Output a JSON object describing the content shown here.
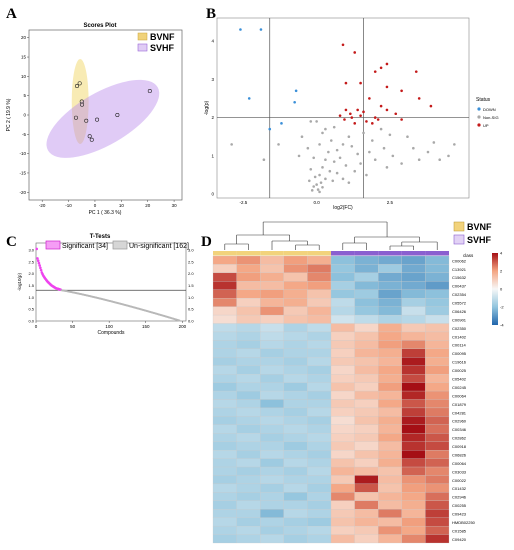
{
  "panels": {
    "A": {
      "letter": "A",
      "title": "Scores Plot",
      "xlabel": "PC 1 ( 36.3 %)",
      "ylabel": "PC 2 ( 19.9 %)",
      "legend": [
        {
          "name": "BVNF",
          "color": "#f0d27a"
        },
        {
          "name": "SVHF",
          "color": "#9a66d8"
        }
      ],
      "x_ticks": [
        "-20",
        "-10",
        "0",
        "10",
        "20",
        "30"
      ],
      "y_ticks": [
        "-20",
        "-15",
        "-10",
        "-5",
        "0",
        "5",
        "10",
        "15",
        "20"
      ]
    },
    "B": {
      "letter": "B",
      "xlabel": "log2(FC)",
      "ylabel": "-log(p)",
      "x_ticks": [
        "-2.5",
        "0.0",
        "2.5"
      ],
      "y_ticks": [
        "0",
        "1",
        "2",
        "3",
        "4"
      ],
      "legend_title": "Status",
      "legend": [
        {
          "name": "DOWN",
          "color": "#3a8fd8"
        },
        {
          "name": "Non-SIG",
          "color": "#a9a9a9"
        },
        {
          "name": "UP",
          "color": "#c41a1a"
        }
      ]
    },
    "C": {
      "letter": "C",
      "title": "T-Tests",
      "xlabel": "Compounds",
      "ylabel": "-log10(p)",
      "legend": [
        {
          "name": "Significant [34]",
          "color": "#ee44ee"
        },
        {
          "name": "Un-significant [162]",
          "color": "#b8b8b8"
        }
      ],
      "x_ticks": [
        "0",
        "50",
        "100",
        "150",
        "200"
      ],
      "y_ticks": [
        "0.0",
        "0.5",
        "1.0",
        "1.5",
        "2.0",
        "2.5",
        "3.0"
      ]
    },
    "D": {
      "letter": "D",
      "legend": [
        {
          "name": "BVNF",
          "color": "#f2d37c"
        },
        {
          "name": "SVHF",
          "color": "#8a5fd0"
        }
      ],
      "class_label": "class",
      "scale_ticks": [
        "4",
        "2",
        "0",
        "-2",
        "-4"
      ],
      "row_labels": [
        "C00062",
        "C13921",
        "C15632",
        "C00437",
        "C02354",
        "C05572",
        "C06426",
        "C00901",
        "C02350",
        "C01402",
        "C00114",
        "C00095",
        "C19616",
        "C00025",
        "C05402",
        "C00245",
        "C00064",
        "C01879",
        "C04281",
        "C02960",
        "C00346",
        "C02862",
        "C00918",
        "C06826",
        "C00064",
        "C03033",
        "C00022",
        "C01432",
        "C02946",
        "C00255",
        "C09423",
        "HMDB02250",
        "C01585",
        "C09420"
      ]
    }
  },
  "chart_data": [
    {
      "type": "scatter",
      "title": "Scores Plot",
      "xlabel": "PC 1 ( 36.3 %)",
      "ylabel": "PC 2 ( 19.9 %)",
      "xlim": [
        -25,
        33
      ],
      "ylim": [
        -22,
        22
      ],
      "series": [
        {
          "name": "BVNF",
          "color": "#f0d27a",
          "points": [
            [
              -6.8,
              7.5
            ],
            [
              -5.8,
              8.2
            ],
            [
              -5.0,
              3.5
            ],
            [
              -4.9,
              2.7
            ],
            [
              -7.2,
              -0.7
            ],
            [
              -3.3,
              -1.5
            ]
          ],
          "ellipse": {
            "cx": -5.6,
            "cy": 3.5,
            "rx": 3.2,
            "ry": 11,
            "angle": 0
          }
        },
        {
          "name": "SVHF",
          "color": "#9a66d8",
          "points": [
            [
              -2.0,
              -5.5
            ],
            [
              -1.2,
              -6.4
            ],
            [
              0.8,
              -1.2
            ],
            [
              8.5,
              0.0
            ],
            [
              20.8,
              6.2
            ]
          ],
          "ellipse": {
            "cx": 3.0,
            "cy": -1.0,
            "rx": 24,
            "ry": 6.8,
            "angle": 30
          }
        }
      ]
    },
    {
      "type": "scatter",
      "xlabel": "log2(FC)",
      "ylabel": "-log(p)",
      "xlim": [
        -3.4,
        5.2
      ],
      "ylim": [
        -0.1,
        4.6
      ],
      "vlines": [
        -1.6,
        1.6
      ],
      "hline": 2.0,
      "series": [
        {
          "name": "DOWN",
          "color": "#3a8fd8",
          "points": [
            [
              -2.6,
              4.3
            ],
            [
              -1.9,
              4.3
            ],
            [
              -2.3,
              2.5
            ],
            [
              -0.7,
              2.7
            ],
            [
              -0.75,
              2.4
            ],
            [
              -1.2,
              1.85
            ],
            [
              -1.6,
              1.7
            ]
          ]
        },
        {
          "name": "UP",
          "color": "#c41a1a",
          "points": [
            [
              0.9,
              3.9
            ],
            [
              1.3,
              3.7
            ],
            [
              1.0,
              2.9
            ],
            [
              2.2,
              3.3
            ],
            [
              2.0,
              3.2
            ],
            [
              2.4,
              3.4
            ],
            [
              1.5,
              2.9
            ],
            [
              3.5,
              2.5
            ],
            [
              2.4,
              2.8
            ],
            [
              1.8,
              2.5
            ],
            [
              2.2,
              2.3
            ],
            [
              3.4,
              3.2
            ],
            [
              3.9,
              2.3
            ],
            [
              2.9,
              2.7
            ],
            [
              2.0,
              2.0
            ],
            [
              2.7,
              2.1
            ],
            [
              2.4,
              2.2
            ],
            [
              1.4,
              2.2
            ],
            [
              1.6,
              2.15
            ],
            [
              1.0,
              2.2
            ],
            [
              1.2,
              2.0
            ],
            [
              0.8,
              2.05
            ],
            [
              2.9,
              1.95
            ],
            [
              1.7,
              1.9
            ],
            [
              2.1,
              1.95
            ],
            [
              1.3,
              1.85
            ],
            [
              1.9,
              1.85
            ],
            [
              1.5,
              2.05
            ],
            [
              0.95,
              1.95
            ],
            [
              1.15,
              2.1
            ]
          ]
        },
        {
          "name": "Non-SIG",
          "color": "#a9a9a9",
          "points": [
            [
              -2.9,
              1.3
            ],
            [
              -1.3,
              1.3
            ],
            [
              -0.2,
              1.9
            ],
            [
              0.0,
              1.9
            ],
            [
              -1.8,
              0.9
            ],
            [
              -0.5,
              1.5
            ],
            [
              0.3,
              1.7
            ],
            [
              0.6,
              1.75
            ],
            [
              0.2,
              1.6
            ],
            [
              0.5,
              1.4
            ],
            [
              0.1,
              1.3
            ],
            [
              -0.3,
              1.2
            ],
            [
              0.7,
              1.15
            ],
            [
              0.4,
              1.1
            ],
            [
              0.9,
              1.3
            ],
            [
              1.1,
              1.5
            ],
            [
              1.2,
              1.25
            ],
            [
              1.4,
              1.05
            ],
            [
              -0.6,
              1.0
            ],
            [
              -0.1,
              0.95
            ],
            [
              0.3,
              0.9
            ],
            [
              0.6,
              0.85
            ],
            [
              0.8,
              0.95
            ],
            [
              1.0,
              0.75
            ],
            [
              0.2,
              0.7
            ],
            [
              -0.2,
              0.65
            ],
            [
              0.45,
              0.6
            ],
            [
              0.7,
              0.55
            ],
            [
              0.1,
              0.5
            ],
            [
              -0.05,
              0.45
            ],
            [
              0.3,
              0.4
            ],
            [
              0.55,
              0.35
            ],
            [
              -0.25,
              0.35
            ],
            [
              0.15,
              0.3
            ],
            [
              0.0,
              0.25
            ],
            [
              -0.1,
              0.2
            ],
            [
              0.2,
              0.18
            ],
            [
              0.05,
              0.12
            ],
            [
              -0.15,
              0.1
            ],
            [
              0.1,
              0.06
            ],
            [
              1.6,
              1.6
            ],
            [
              1.9,
              1.4
            ],
            [
              2.3,
              1.2
            ],
            [
              2.6,
              1.0
            ],
            [
              2.9,
              0.8
            ],
            [
              3.1,
              1.5
            ],
            [
              3.3,
              1.2
            ],
            [
              3.5,
              0.9
            ],
            [
              3.8,
              1.1
            ],
            [
              4.0,
              1.35
            ],
            [
              4.2,
              0.9
            ],
            [
              4.5,
              1.0
            ],
            [
              4.7,
              1.3
            ],
            [
              2.2,
              1.7
            ],
            [
              2.5,
              1.55
            ],
            [
              1.8,
              1.1
            ],
            [
              2.0,
              0.9
            ],
            [
              2.4,
              0.7
            ],
            [
              1.5,
              0.8
            ],
            [
              1.3,
              0.6
            ],
            [
              1.7,
              0.5
            ],
            [
              0.9,
              0.4
            ],
            [
              1.1,
              0.3
            ]
          ]
        }
      ]
    },
    {
      "type": "scatter",
      "title": "T-Tests",
      "xlabel": "Compounds",
      "ylabel": "-log10(p)",
      "xlim": [
        0,
        205
      ],
      "ylim": [
        0,
        3.3
      ],
      "hline": 1.3,
      "series": [
        {
          "name": "Significant [34]",
          "color": "#ee44ee",
          "values": [
            3.05,
            2.65,
            2.55,
            2.45,
            2.35,
            2.25,
            2.15,
            2.05,
            1.98,
            1.92,
            1.87,
            1.82,
            1.78,
            1.74,
            1.7,
            1.66,
            1.63,
            1.6,
            1.57,
            1.54,
            1.51,
            1.49,
            1.47,
            1.45,
            1.43,
            1.41,
            1.39,
            1.38,
            1.37,
            1.36,
            1.35,
            1.34,
            1.33,
            1.32
          ]
        },
        {
          "name": "Un-significant [162]",
          "color": "#b8b8b8",
          "start": 1.3,
          "end": 0.02,
          "count": 162
        }
      ]
    },
    {
      "type": "heatmap",
      "legend": [
        "BVNF",
        "SVHF"
      ],
      "class_label": "class",
      "columns": 10,
      "column_groups": [
        "BVNF",
        "BVNF",
        "BVNF",
        "BVNF",
        "BVNF",
        "SVHF",
        "SVHF",
        "SVHF",
        "SVHF",
        "SVHF"
      ],
      "scale_range": [
        -4,
        4
      ],
      "rows": [
        [
          1.2,
          1.4,
          0.9,
          1.3,
          1.1,
          -1.3,
          -1.5,
          -1.6,
          -1.7,
          -1.4
        ],
        [
          0.6,
          1.2,
          0.8,
          1.4,
          1.6,
          -1.2,
          -1.5,
          -1.1,
          -1.6,
          -1.4
        ],
        [
          2.0,
          1.3,
          1.1,
          0.8,
          1.5,
          -1.3,
          -1.0,
          -1.6,
          -1.7,
          -1.5
        ],
        [
          2.2,
          0.9,
          0.9,
          1.2,
          1.3,
          -1.0,
          -1.4,
          -1.5,
          -1.6,
          -1.8
        ],
        [
          1.8,
          1.2,
          1.3,
          1.1,
          0.8,
          -1.2,
          -1.1,
          -1.7,
          -1.4,
          -1.3
        ],
        [
          1.5,
          0.6,
          1.0,
          1.1,
          0.7,
          -0.7,
          -1.3,
          -1.5,
          -1.0,
          -1.2
        ],
        [
          0.5,
          0.8,
          1.4,
          0.7,
          1.0,
          -0.8,
          -1.2,
          -1.4,
          -0.6,
          -1.1
        ],
        [
          0.4,
          0.7,
          0.6,
          0.8,
          0.9,
          -0.5,
          -0.7,
          -0.9,
          -0.8,
          -0.6
        ],
        [
          -0.7,
          -0.8,
          -0.6,
          -0.9,
          -0.7,
          0.9,
          0.5,
          1.1,
          0.7,
          0.8
        ],
        [
          -0.8,
          -0.9,
          -0.7,
          -0.8,
          -0.9,
          0.6,
          0.8,
          1.2,
          1.0,
          0.9
        ],
        [
          -0.9,
          -1.0,
          -0.8,
          -0.9,
          -0.8,
          0.7,
          0.9,
          1.3,
          1.5,
          1.0
        ],
        [
          -0.9,
          -0.8,
          -1.0,
          -0.9,
          -0.9,
          0.6,
          1.0,
          1.1,
          2.1,
          1.2
        ],
        [
          -1.0,
          -0.9,
          -0.9,
          -1.0,
          -0.8,
          0.7,
          0.8,
          1.0,
          2.4,
          1.1
        ],
        [
          -0.8,
          -1.0,
          -0.8,
          -0.9,
          -1.0,
          0.5,
          0.9,
          1.2,
          2.2,
          1.3
        ],
        [
          -0.9,
          -0.8,
          -1.0,
          -0.8,
          -0.9,
          0.6,
          0.7,
          1.1,
          2.0,
          1.0
        ],
        [
          -1.1,
          -0.9,
          -0.9,
          -1.1,
          -0.8,
          0.8,
          0.6,
          1.3,
          2.5,
          1.2
        ],
        [
          -0.9,
          -1.1,
          -0.8,
          -0.9,
          -1.0,
          0.5,
          0.9,
          1.0,
          2.3,
          1.4
        ],
        [
          -0.8,
          -0.9,
          -1.3,
          -0.9,
          -0.9,
          0.7,
          0.6,
          1.2,
          1.9,
          1.5
        ],
        [
          -0.9,
          -0.8,
          -0.9,
          -1.0,
          -0.8,
          0.6,
          0.7,
          0.9,
          2.1,
          1.6
        ],
        [
          -1.0,
          -0.9,
          -0.8,
          -0.9,
          -1.0,
          0.4,
          0.8,
          1.1,
          2.4,
          1.8
        ],
        [
          -0.8,
          -1.0,
          -0.9,
          -0.8,
          -0.9,
          0.5,
          0.6,
          1.0,
          2.6,
          1.7
        ],
        [
          -0.9,
          -0.8,
          -1.0,
          -0.9,
          -0.8,
          0.6,
          0.7,
          1.2,
          2.3,
          1.9
        ],
        [
          -1.0,
          -0.9,
          -0.9,
          -1.1,
          -0.9,
          0.7,
          0.5,
          0.9,
          2.2,
          2.0
        ],
        [
          -0.8,
          -1.0,
          -0.8,
          -0.9,
          -1.0,
          0.5,
          0.8,
          1.0,
          2.5,
          1.6
        ],
        [
          -0.9,
          -0.8,
          -1.1,
          -0.8,
          -0.9,
          0.8,
          0.6,
          1.1,
          2.0,
          1.8
        ],
        [
          -0.9,
          -1.0,
          -0.9,
          -1.0,
          -0.8,
          1.0,
          0.9,
          0.8,
          1.8,
          1.5
        ],
        [
          -1.0,
          -0.9,
          -0.8,
          -0.9,
          -0.9,
          0.7,
          2.4,
          0.9,
          1.4,
          1.6
        ],
        [
          -0.8,
          -0.9,
          -1.0,
          -0.8,
          -1.0,
          1.2,
          1.9,
          0.8,
          1.3,
          1.4
        ],
        [
          -0.9,
          -1.0,
          -0.9,
          -1.2,
          -0.9,
          1.5,
          0.8,
          1.0,
          1.2,
          1.7
        ],
        [
          -1.0,
          -0.8,
          -0.9,
          -0.9,
          -1.0,
          0.6,
          1.6,
          0.9,
          1.1,
          1.9
        ],
        [
          -0.9,
          -0.9,
          -1.4,
          -0.8,
          -0.9,
          0.7,
          0.9,
          1.6,
          1.0,
          2.1
        ],
        [
          -0.8,
          -1.0,
          -0.9,
          -1.0,
          -1.1,
          0.8,
          1.0,
          0.9,
          1.3,
          2.0
        ],
        [
          -0.9,
          -0.8,
          -1.0,
          -0.9,
          -0.8,
          0.6,
          0.7,
          1.4,
          1.2,
          1.8
        ],
        [
          -1.0,
          -0.9,
          -0.8,
          -1.0,
          -0.9,
          0.9,
          0.6,
          1.0,
          1.5,
          2.2
        ]
      ]
    }
  ]
}
